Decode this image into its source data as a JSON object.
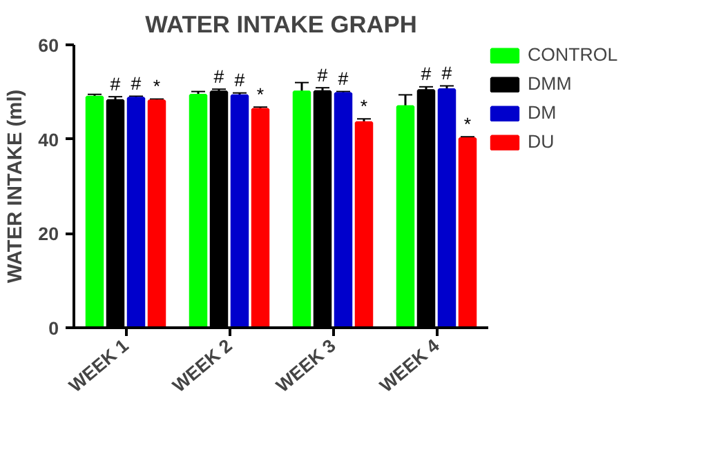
{
  "chart_data": {
    "type": "bar",
    "title": "WATER INTAKE GRAPH",
    "ylabel": "WATER INTAKE (ml)",
    "categories": [
      "WEEK 1",
      "WEEK 2",
      "WEEK 3",
      "WEEK 4"
    ],
    "ylim": [
      0,
      60
    ],
    "yticks": [
      0,
      20,
      40,
      60
    ],
    "legend": "right",
    "series": [
      {
        "name": "CONTROL",
        "color": "#00ff00",
        "values": [
          48.9,
          49.3,
          50.0,
          46.9
        ],
        "errors": [
          0.6,
          0.8,
          2.0,
          2.5
        ],
        "value_labels": [
          null,
          null,
          null,
          null
        ]
      },
      {
        "name": "DMM",
        "color": "#000000",
        "values": [
          48.2,
          50.0,
          50.1,
          50.3
        ],
        "errors": [
          0.8,
          0.6,
          0.8,
          0.8
        ],
        "value_labels": [
          "#",
          "#",
          "#",
          "#"
        ]
      },
      {
        "name": "DM",
        "color": "#0000cc",
        "values": [
          48.7,
          49.2,
          49.7,
          50.5
        ],
        "errors": [
          0.4,
          0.6,
          0.4,
          0.8
        ],
        "value_labels": [
          "#",
          "#",
          "#",
          "#"
        ]
      },
      {
        "name": "DU",
        "color": "#ff0000",
        "values": [
          48.1,
          46.3,
          43.5,
          40.1
        ],
        "errors": [
          0.4,
          0.5,
          0.8,
          0.4
        ],
        "value_labels": [
          "*",
          "*",
          "*",
          "*"
        ]
      }
    ]
  }
}
